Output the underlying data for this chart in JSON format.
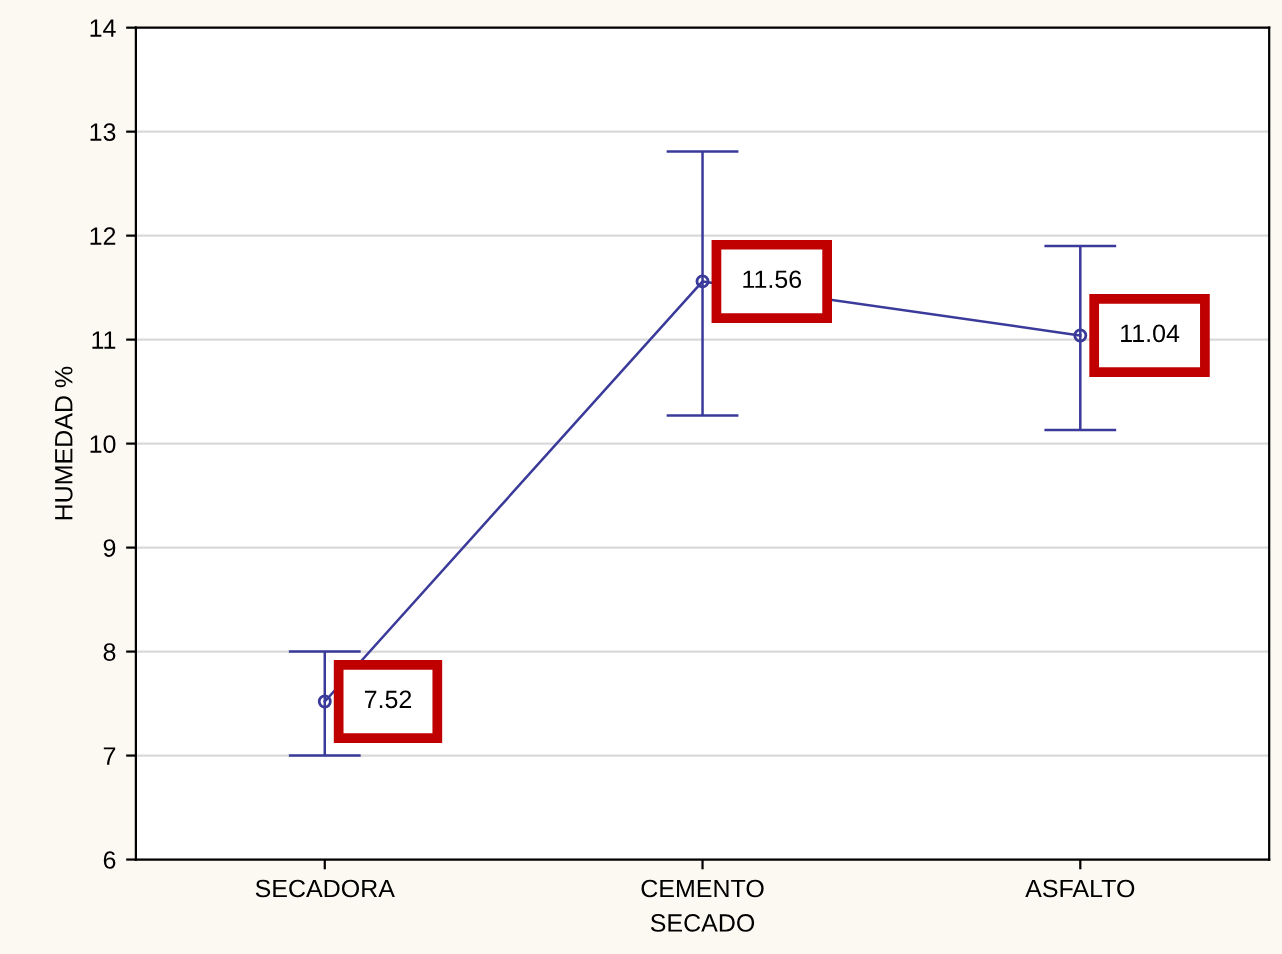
{
  "chart_data": {
    "type": "line",
    "xlabel": "SECADO",
    "ylabel": "HUMEDAD %",
    "categories": [
      "SECADORA",
      "CEMENTO",
      "ASFALTO"
    ],
    "values": [
      7.52,
      11.56,
      11.04
    ],
    "errors": [
      [
        7.0,
        8.0
      ],
      [
        10.27,
        12.81
      ],
      [
        10.13,
        11.9
      ]
    ],
    "color": "#3a3a9a",
    "marker": "circle",
    "line_style": "solid",
    "data_labels": true,
    "ylim": [
      6,
      14
    ],
    "yticks": [
      6,
      7,
      8,
      9,
      10,
      11,
      12,
      13,
      14
    ],
    "grid": "y"
  }
}
